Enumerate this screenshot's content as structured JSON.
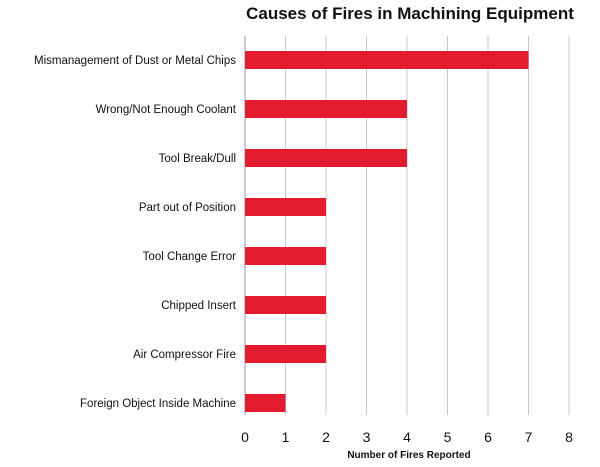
{
  "chart_data": {
    "type": "bar",
    "orientation": "horizontal",
    "title": "Causes of Fires in Machining Equipment",
    "xlabel": "Number of Fires Reported",
    "ylabel": "",
    "categories": [
      "Mismanagement of Dust or Metal Chips",
      "Wrong/Not Enough Coolant",
      "Tool Break/Dull",
      "Part out of Position",
      "Tool Change Error",
      "Chipped Insert",
      "Air Compressor Fire",
      "Foreign Object Inside Machine"
    ],
    "values": [
      7,
      4,
      4,
      2,
      2,
      2,
      2,
      1
    ],
    "xlim": [
      0,
      8
    ],
    "xticks": [
      "0",
      "1",
      "2",
      "3",
      "4",
      "5",
      "6",
      "7",
      "8"
    ],
    "grid": "vertical",
    "legend": "none",
    "colors": {
      "bar": "#e31b2e",
      "grid": "#c8c8c8",
      "text": "#111111"
    }
  }
}
